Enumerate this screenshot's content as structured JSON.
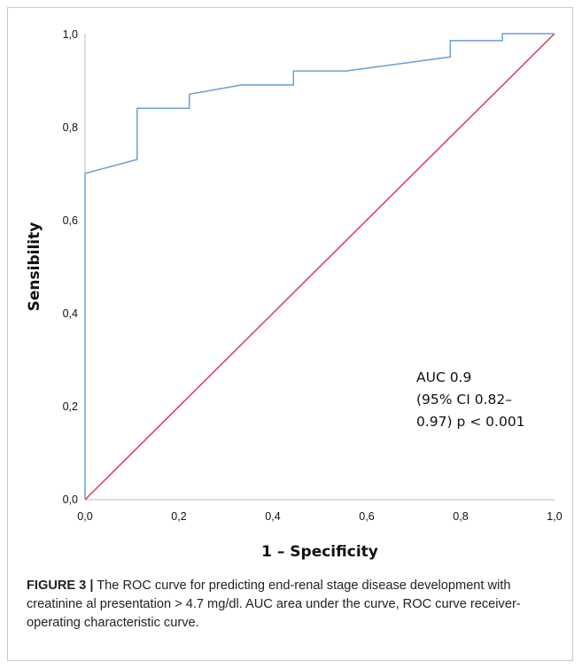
{
  "caption": {
    "label": "FIGURE 3 |",
    "text": " The ROC curve for predicting end-renal stage disease development with creatinine al presentation > 4.7 mg/dl. AUC area under the curve, ROC curve receiver-operating characteristic curve."
  },
  "chart_data": {
    "type": "line",
    "title": "",
    "xlabel": "1 – Specificity",
    "ylabel": "Sensibility",
    "xlim": [
      0,
      1
    ],
    "ylim": [
      0,
      1
    ],
    "x_ticks": [
      "0,0",
      "0,2",
      "0,4",
      "0,6",
      "0,8",
      "1,0"
    ],
    "y_ticks": [
      "0,0",
      "0,2",
      "0,4",
      "0,6",
      "0,8",
      "1,0"
    ],
    "grid": false,
    "series": [
      {
        "color": "#6a9fd8",
        "x": [
          0,
          0,
          0.111,
          0.111,
          0.222,
          0.222,
          0.333,
          0.444,
          0.444,
          0.556,
          0.778,
          0.778,
          0.889,
          0.889,
          1.0
        ],
        "y": [
          0,
          0.7,
          0.73,
          0.84,
          0.84,
          0.87,
          0.89,
          0.89,
          0.92,
          0.92,
          0.95,
          0.985,
          0.985,
          1.0,
          1.0
        ]
      },
      {
        "color": "#e0365a",
        "x": [
          0,
          1
        ],
        "y": [
          0,
          1
        ]
      }
    ],
    "annotation": [
      "AUC 0.9",
      "(95% CI 0.82–",
      "0.97) p < 0.001"
    ]
  }
}
